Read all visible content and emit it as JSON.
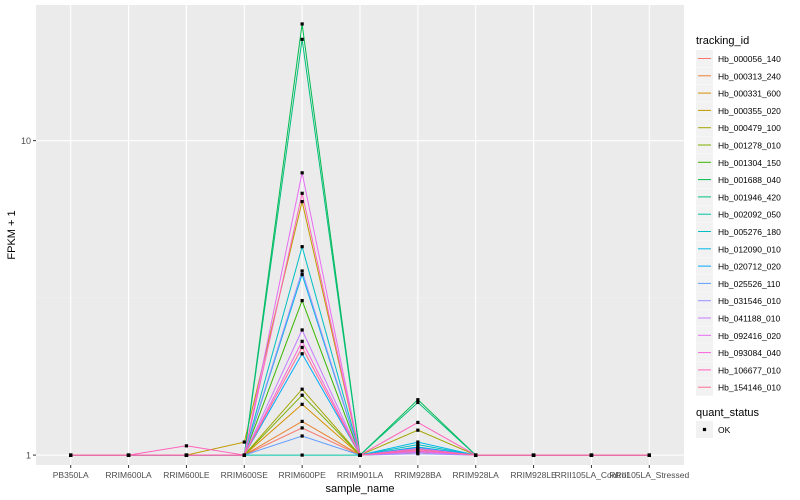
{
  "chart_data": {
    "type": "line",
    "xlabel": "sample_name",
    "ylabel": "FPKM + 1",
    "y_scale": "log10",
    "ylim": [
      0.93,
      27
    ],
    "y_ticks": [
      {
        "value": 1,
        "label": "1"
      },
      {
        "value": 10,
        "label": "10"
      }
    ],
    "categories": [
      "PB350LA",
      "RRIM600LA",
      "RRIM600LE",
      "RRIM600SE",
      "RRIM600PE",
      "RRIM901LA",
      "RRIM928BA",
      "RRIM928LA",
      "RRIM928LE",
      "RRII105LA_Control",
      "RRII105LA_Stressed"
    ],
    "legend_title": "tracking_id",
    "shape_legend_title": "quant_status",
    "shape_legend_entries": [
      "OK"
    ],
    "series": [
      {
        "name": "Hb_000056_140",
        "color": "#F8766D",
        "values": [
          1,
          1,
          1,
          1.0,
          1.22,
          1,
          1.02,
          1,
          1,
          1,
          1
        ]
      },
      {
        "name": "Hb_000313_240",
        "color": "#EA8331",
        "values": [
          1,
          1,
          1,
          1.0,
          1.28,
          1,
          1.03,
          1,
          1,
          1,
          1
        ]
      },
      {
        "name": "Hb_000331_600",
        "color": "#D89000",
        "values": [
          1,
          1,
          1,
          1.0,
          1.45,
          1,
          1.02,
          1,
          1,
          1,
          1
        ]
      },
      {
        "name": "Hb_000355_020",
        "color": "#C09B00",
        "values": [
          1,
          1,
          1,
          1.1,
          6.4,
          1,
          1.03,
          1,
          1,
          1,
          1
        ]
      },
      {
        "name": "Hb_000479_100",
        "color": "#A3A500",
        "values": [
          1,
          1,
          1,
          1.0,
          1.62,
          1,
          1.2,
          1,
          1,
          1,
          1
        ]
      },
      {
        "name": "Hb_001278_010",
        "color": "#7CAE00",
        "values": [
          1,
          1,
          1,
          1.0,
          1.55,
          1,
          1.05,
          1,
          1,
          1,
          1
        ]
      },
      {
        "name": "Hb_001304_150",
        "color": "#39B600",
        "values": [
          1,
          1,
          1,
          1.0,
          3.1,
          1,
          1.06,
          1,
          1,
          1,
          1
        ]
      },
      {
        "name": "Hb_001688_040",
        "color": "#00BB4E",
        "values": [
          1,
          1,
          1,
          1.0,
          23.5,
          1,
          1.5,
          1,
          1,
          1,
          1
        ]
      },
      {
        "name": "Hb_001946_420",
        "color": "#00BF7D",
        "values": [
          1,
          1,
          1,
          1.0,
          21.0,
          1,
          1.47,
          1,
          1,
          1,
          1
        ]
      },
      {
        "name": "Hb_002092_050",
        "color": "#00C1A3",
        "values": [
          1,
          1,
          1,
          1.0,
          1.0,
          1,
          1.05,
          1,
          1,
          1,
          1
        ]
      },
      {
        "name": "Hb_005276_180",
        "color": "#00BFC4",
        "values": [
          1,
          1,
          1,
          1.0,
          4.6,
          1,
          1.08,
          1,
          1,
          1,
          1
        ]
      },
      {
        "name": "Hb_012090_010",
        "color": "#00B8E7",
        "values": [
          1,
          1,
          1,
          1.0,
          3.75,
          1,
          1.1,
          1,
          1,
          1,
          1
        ]
      },
      {
        "name": "Hb_020712_020",
        "color": "#00A9FF",
        "values": [
          1,
          1,
          1,
          1.0,
          2.1,
          1,
          1.06,
          1,
          1,
          1,
          1
        ]
      },
      {
        "name": "Hb_025526_110",
        "color": "#619CFF",
        "values": [
          1,
          1,
          1,
          1.0,
          1.15,
          1,
          1.04,
          1,
          1,
          1,
          1
        ]
      },
      {
        "name": "Hb_031546_010",
        "color": "#9590FF",
        "values": [
          1,
          1,
          1,
          1.0,
          3.85,
          1,
          1.01,
          1,
          1,
          1,
          1
        ]
      },
      {
        "name": "Hb_041188_010",
        "color": "#C77CFF",
        "values": [
          1,
          1,
          1,
          1.0,
          2.5,
          1,
          1.02,
          1,
          1,
          1,
          1
        ]
      },
      {
        "name": "Hb_092416_020",
        "color": "#E76BF3",
        "values": [
          1,
          1,
          1,
          1.0,
          7.9,
          1,
          1.05,
          1,
          1,
          1,
          1
        ]
      },
      {
        "name": "Hb_093084_040",
        "color": "#FA62DB",
        "values": [
          1,
          1,
          1,
          1.0,
          2.3,
          1,
          1.03,
          1,
          1,
          1,
          1
        ]
      },
      {
        "name": "Hb_106677_010",
        "color": "#FF62BC",
        "values": [
          1,
          1,
          1.07,
          1.0,
          6.8,
          1,
          1.27,
          1,
          1,
          1,
          1
        ]
      },
      {
        "name": "Hb_154146_010",
        "color": "#FF6C91",
        "values": [
          1,
          1,
          1,
          1.0,
          2.2,
          1,
          1.04,
          1,
          1,
          1,
          1
        ]
      }
    ]
  }
}
